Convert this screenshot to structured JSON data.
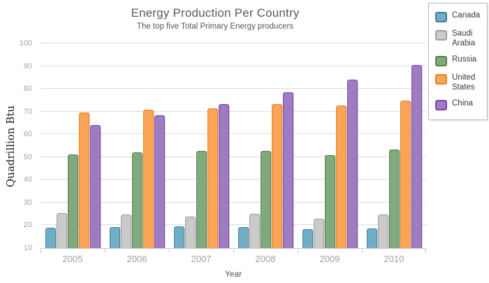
{
  "chart_data": {
    "type": "bar",
    "title": "Energy Production Per Country",
    "subtitle": "The top five Total Primary Energy producers",
    "xlabel": "Year",
    "ylabel": "Quadrillion Btu",
    "ylim": [
      10,
      100
    ],
    "ytick_step": 10,
    "grid": true,
    "legend_position": "outside-top-right",
    "categories": [
      "2005",
      "2006",
      "2007",
      "2008",
      "2009",
      "2010"
    ],
    "series": [
      {
        "name": "Canada",
        "fill": "#6FAFC6",
        "stroke": "#3F7E9A",
        "values": [
          19.0,
          19.2,
          19.5,
          19.2,
          18.3,
          18.5
        ]
      },
      {
        "name": "Saudi Arabia",
        "fill": "#CACACA",
        "stroke": "#9E9E9E",
        "values": [
          25.5,
          24.6,
          23.9,
          25.2,
          22.9,
          24.8
        ]
      },
      {
        "name": "Russia",
        "fill": "#81A97E",
        "stroke": "#53804F",
        "values": [
          51.1,
          52.2,
          52.6,
          52.6,
          50.8,
          53.3
        ]
      },
      {
        "name": "United States",
        "fill": "#F9A457",
        "stroke": "#E5821F",
        "values": [
          69.6,
          70.9,
          71.5,
          73.3,
          72.7,
          74.9
        ]
      },
      {
        "name": "China",
        "fill": "#9F7CC1",
        "stroke": "#7548A5",
        "values": [
          64.1,
          68.3,
          73.4,
          78.4,
          84.1,
          90.6
        ]
      }
    ]
  }
}
